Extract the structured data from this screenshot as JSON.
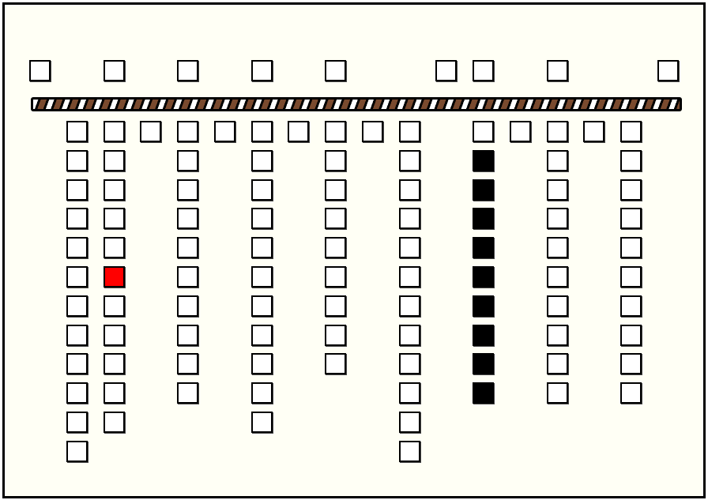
{
  "game": {
    "colors": {
      "background": "#fffff5",
      "empty": "#ffffff",
      "filled": "#000000",
      "selected": "#ff0000",
      "bar": "#7a4a2e"
    },
    "top_row": [
      0,
      2,
      4,
      6,
      8,
      11,
      12,
      14,
      17
    ],
    "columns": [
      {
        "column": 1,
        "cells": [
          "empty",
          "empty",
          "empty",
          "empty",
          "empty",
          "empty",
          "empty",
          "empty",
          "empty",
          "empty",
          "empty",
          "empty"
        ]
      },
      {
        "column": 2,
        "cells": [
          "empty",
          "empty",
          "empty",
          "empty",
          "empty",
          "red",
          "empty",
          "empty",
          "empty",
          "empty",
          "empty"
        ]
      },
      {
        "column": 3,
        "cells": [
          "empty"
        ]
      },
      {
        "column": 4,
        "cells": [
          "empty",
          "empty",
          "empty",
          "empty",
          "empty",
          "empty",
          "empty",
          "empty",
          "empty",
          "empty"
        ]
      },
      {
        "column": 5,
        "cells": [
          "empty"
        ]
      },
      {
        "column": 6,
        "cells": [
          "empty",
          "empty",
          "empty",
          "empty",
          "empty",
          "empty",
          "empty",
          "empty",
          "empty",
          "empty",
          "empty"
        ]
      },
      {
        "column": 7,
        "cells": [
          "empty"
        ]
      },
      {
        "column": 8,
        "cells": [
          "empty",
          "empty",
          "empty",
          "empty",
          "empty",
          "empty",
          "empty",
          "empty",
          "empty"
        ]
      },
      {
        "column": 9,
        "cells": [
          "empty"
        ]
      },
      {
        "column": 10,
        "cells": [
          "empty",
          "empty",
          "empty",
          "empty",
          "empty",
          "empty",
          "empty",
          "empty",
          "empty",
          "empty",
          "empty",
          "empty"
        ]
      },
      {
        "column": 12,
        "cells": [
          "empty",
          "black",
          "black",
          "black",
          "black",
          "black",
          "black",
          "black",
          "black",
          "black"
        ]
      },
      {
        "column": 13,
        "cells": [
          "empty"
        ]
      },
      {
        "column": 14,
        "cells": [
          "empty",
          "empty",
          "empty",
          "empty",
          "empty",
          "empty",
          "empty",
          "empty",
          "empty",
          "empty"
        ]
      },
      {
        "column": 15,
        "cells": [
          "empty"
        ]
      },
      {
        "column": 16,
        "cells": [
          "empty",
          "empty",
          "empty",
          "empty",
          "empty",
          "empty",
          "empty",
          "empty",
          "empty",
          "empty"
        ]
      }
    ]
  }
}
